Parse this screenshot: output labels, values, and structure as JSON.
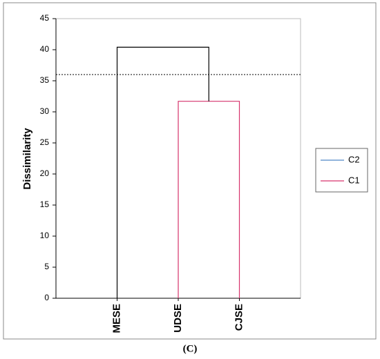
{
  "chart_data": {
    "type": "dendrogram",
    "ylabel": "Dissimilarity",
    "leaves": [
      "MESE",
      "UDSE",
      "CJSE"
    ],
    "merges": [
      {
        "leaves": [
          1,
          2
        ],
        "height": 31.7,
        "color": "#d6336c"
      },
      {
        "leaves": [
          0,
          1,
          2
        ],
        "height": 40.4,
        "color": "#000000"
      }
    ],
    "threshold": 36,
    "ylim": [
      0,
      45
    ],
    "yticks": [
      0,
      5,
      10,
      15,
      20,
      25,
      30,
      35,
      40,
      45
    ],
    "series": [
      {
        "name": "C2",
        "color": "#4f86c6"
      },
      {
        "name": "C1",
        "color": "#d6336c"
      }
    ],
    "legend": "right",
    "caption": "(C)"
  }
}
